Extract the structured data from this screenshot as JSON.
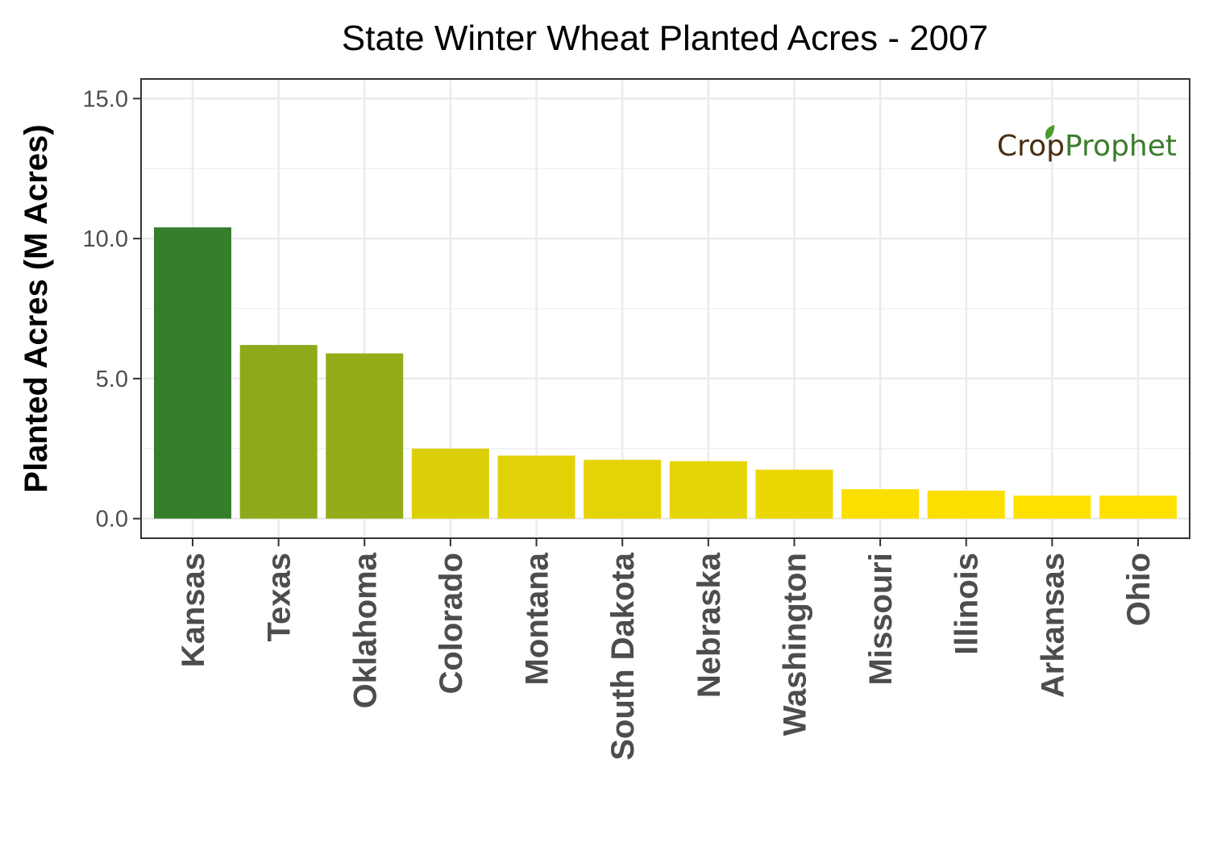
{
  "chart_data": {
    "type": "bar",
    "title": "State Winter Wheat Planted Acres - 2007",
    "xlabel": "",
    "ylabel": "Planted Acres (M Acres)",
    "ylim": [
      -0.7,
      15.7
    ],
    "yticks": [
      0,
      5,
      10,
      15
    ],
    "ytick_labels": [
      "0.0",
      "5.0",
      "10.0",
      "15.0"
    ],
    "grid": true,
    "legend": "none",
    "categories": [
      "Kansas",
      "Texas",
      "Oklahoma",
      "Colorado",
      "Montana",
      "South Dakota",
      "Nebraska",
      "Washington",
      "Missouri",
      "Illinois",
      "Arkansas",
      "Ohio"
    ],
    "values": [
      10.4,
      6.2,
      5.9,
      2.5,
      2.25,
      2.1,
      2.05,
      1.75,
      1.05,
      1.0,
      0.82,
      0.82
    ],
    "color_scale": {
      "low": "#ffe100",
      "high": "#367d2c"
    }
  },
  "logo": {
    "part1": "Crop",
    "part2": "Prophet",
    "color1": "#4a2e12",
    "color2": "#3a7d2c",
    "leaf_color": "#4c9a2a"
  }
}
